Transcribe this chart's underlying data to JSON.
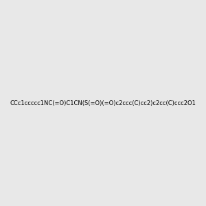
{
  "smiles": "CCc1ccccc1NC(=O)C1CN(S(=O)(=O)c2ccc(C)cc2)c2cc(C)ccc2O1",
  "title": "",
  "background_color": "#e8e8e8",
  "bond_color": "#2d6b2d",
  "atom_colors": {
    "N": "#0000ff",
    "O": "#ff0000",
    "S": "#cccc00",
    "H": "#808080",
    "C": "#2d6b2d"
  },
  "figsize": [
    3.0,
    3.0
  ],
  "dpi": 100
}
